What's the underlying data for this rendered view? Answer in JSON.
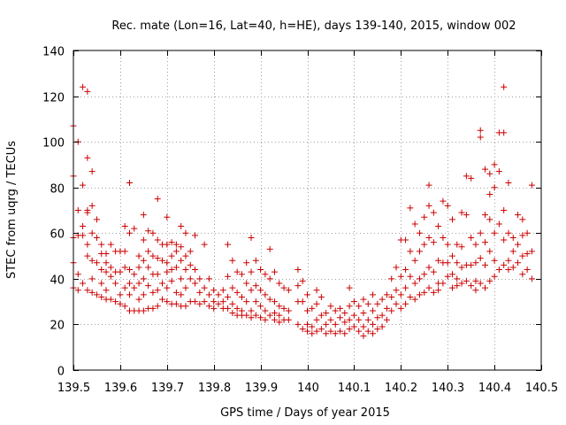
{
  "chart_data": {
    "type": "scatter",
    "title": "Rec. mate (Lon=16, Lat=40, h=HE), days 139-140, 2015, window 002",
    "xlabel": "GPS time / Days of year 2015",
    "ylabel": "STEC from uqrg / TECUs",
    "xlim": [
      139.5,
      140.5
    ],
    "ylim": [
      0,
      140
    ],
    "xticks": [
      139.5,
      139.6,
      139.7,
      139.8,
      139.9,
      140.0,
      140.1,
      140.2,
      140.3,
      140.4,
      140.5
    ],
    "xtick_labels": [
      "139.5",
      "139.6",
      "139.7",
      "139.8",
      "139.9",
      "140",
      "140.1",
      "140.2",
      "140.3",
      "140.4",
      "140.5"
    ],
    "yticks": [
      0,
      20,
      40,
      60,
      80,
      100,
      120,
      140
    ],
    "ytick_labels": [
      "0",
      "20",
      "40",
      "60",
      "80",
      "100",
      "120",
      "140"
    ],
    "grid": true,
    "marker": "plus",
    "color": "#cc0000",
    "points": [
      [
        139.5,
        107
      ],
      [
        139.5,
        85
      ],
      [
        139.5,
        58
      ],
      [
        139.5,
        47
      ],
      [
        139.5,
        36
      ],
      [
        139.51,
        100
      ],
      [
        139.51,
        70
      ],
      [
        139.51,
        59
      ],
      [
        139.51,
        42
      ],
      [
        139.51,
        35
      ],
      [
        139.52,
        124
      ],
      [
        139.52,
        81
      ],
      [
        139.52,
        63
      ],
      [
        139.52,
        59
      ],
      [
        139.52,
        38
      ],
      [
        139.53,
        122
      ],
      [
        139.53,
        93
      ],
      [
        139.53,
        70
      ],
      [
        139.53,
        69
      ],
      [
        139.53,
        55
      ],
      [
        139.53,
        50
      ],
      [
        139.53,
        35
      ],
      [
        139.54,
        87
      ],
      [
        139.54,
        72
      ],
      [
        139.54,
        60
      ],
      [
        139.54,
        48
      ],
      [
        139.54,
        40
      ],
      [
        139.54,
        34
      ],
      [
        139.55,
        66
      ],
      [
        139.55,
        58
      ],
      [
        139.55,
        47
      ],
      [
        139.55,
        33
      ],
      [
        139.56,
        55
      ],
      [
        139.56,
        51
      ],
      [
        139.56,
        44
      ],
      [
        139.56,
        38
      ],
      [
        139.56,
        32
      ],
      [
        139.57,
        51
      ],
      [
        139.57,
        47
      ],
      [
        139.57,
        43
      ],
      [
        139.57,
        35
      ],
      [
        139.57,
        31
      ],
      [
        139.58,
        55
      ],
      [
        139.58,
        45
      ],
      [
        139.58,
        41
      ],
      [
        139.58,
        31
      ],
      [
        139.59,
        52
      ],
      [
        139.59,
        43
      ],
      [
        139.59,
        38
      ],
      [
        139.59,
        30
      ],
      [
        139.6,
        52
      ],
      [
        139.6,
        43
      ],
      [
        139.6,
        33
      ],
      [
        139.6,
        29
      ],
      [
        139.61,
        63
      ],
      [
        139.61,
        52
      ],
      [
        139.61,
        45
      ],
      [
        139.61,
        36
      ],
      [
        139.61,
        28
      ],
      [
        139.62,
        82
      ],
      [
        139.62,
        60
      ],
      [
        139.62,
        44
      ],
      [
        139.62,
        38
      ],
      [
        139.62,
        33
      ],
      [
        139.62,
        26
      ],
      [
        139.63,
        62
      ],
      [
        139.63,
        42
      ],
      [
        139.63,
        36
      ],
      [
        139.63,
        26
      ],
      [
        139.64,
        50
      ],
      [
        139.64,
        45
      ],
      [
        139.64,
        38
      ],
      [
        139.64,
        31
      ],
      [
        139.64,
        26
      ],
      [
        139.65,
        68
      ],
      [
        139.65,
        57
      ],
      [
        139.65,
        48
      ],
      [
        139.65,
        40
      ],
      [
        139.65,
        33
      ],
      [
        139.65,
        26
      ],
      [
        139.66,
        61
      ],
      [
        139.66,
        52
      ],
      [
        139.66,
        45
      ],
      [
        139.66,
        37
      ],
      [
        139.66,
        27
      ],
      [
        139.67,
        60
      ],
      [
        139.67,
        50
      ],
      [
        139.67,
        42
      ],
      [
        139.67,
        34
      ],
      [
        139.67,
        27
      ],
      [
        139.68,
        75
      ],
      [
        139.68,
        57
      ],
      [
        139.68,
        49
      ],
      [
        139.68,
        42
      ],
      [
        139.68,
        35
      ],
      [
        139.68,
        28
      ],
      [
        139.69,
        55
      ],
      [
        139.69,
        48
      ],
      [
        139.69,
        38
      ],
      [
        139.69,
        31
      ],
      [
        139.7,
        67
      ],
      [
        139.7,
        55
      ],
      [
        139.7,
        47
      ],
      [
        139.7,
        43
      ],
      [
        139.7,
        36
      ],
      [
        139.7,
        30
      ],
      [
        139.71,
        56
      ],
      [
        139.71,
        50
      ],
      [
        139.71,
        44
      ],
      [
        139.71,
        39
      ],
      [
        139.71,
        29
      ],
      [
        139.72,
        55
      ],
      [
        139.72,
        52
      ],
      [
        139.72,
        45
      ],
      [
        139.72,
        34
      ],
      [
        139.72,
        29
      ],
      [
        139.73,
        63
      ],
      [
        139.73,
        54
      ],
      [
        139.73,
        48
      ],
      [
        139.73,
        40
      ],
      [
        139.73,
        33
      ],
      [
        139.73,
        28
      ],
      [
        139.74,
        60
      ],
      [
        139.74,
        50
      ],
      [
        139.74,
        44
      ],
      [
        139.74,
        36
      ],
      [
        139.74,
        28
      ],
      [
        139.75,
        52
      ],
      [
        139.75,
        46
      ],
      [
        139.75,
        40
      ],
      [
        139.75,
        30
      ],
      [
        139.76,
        59
      ],
      [
        139.76,
        44
      ],
      [
        139.76,
        38
      ],
      [
        139.76,
        30
      ],
      [
        139.77,
        40
      ],
      [
        139.77,
        34
      ],
      [
        139.77,
        29
      ],
      [
        139.78,
        55
      ],
      [
        139.78,
        36
      ],
      [
        139.78,
        30
      ],
      [
        139.79,
        40
      ],
      [
        139.79,
        33
      ],
      [
        139.79,
        28
      ],
      [
        139.8,
        35
      ],
      [
        139.8,
        30
      ],
      [
        139.8,
        27
      ],
      [
        139.81,
        33
      ],
      [
        139.81,
        29
      ],
      [
        139.82,
        35
      ],
      [
        139.82,
        30
      ],
      [
        139.82,
        27
      ],
      [
        139.83,
        55
      ],
      [
        139.83,
        41
      ],
      [
        139.83,
        32
      ],
      [
        139.83,
        27
      ],
      [
        139.84,
        48
      ],
      [
        139.84,
        36
      ],
      [
        139.84,
        29
      ],
      [
        139.84,
        25
      ],
      [
        139.85,
        43
      ],
      [
        139.85,
        34
      ],
      [
        139.85,
        27
      ],
      [
        139.85,
        24
      ],
      [
        139.86,
        42
      ],
      [
        139.86,
        32
      ],
      [
        139.86,
        26
      ],
      [
        139.86,
        24
      ],
      [
        139.87,
        47
      ],
      [
        139.87,
        38
      ],
      [
        139.87,
        30
      ],
      [
        139.87,
        24
      ],
      [
        139.88,
        58
      ],
      [
        139.88,
        43
      ],
      [
        139.88,
        35
      ],
      [
        139.88,
        26
      ],
      [
        139.88,
        23
      ],
      [
        139.89,
        48
      ],
      [
        139.89,
        37
      ],
      [
        139.89,
        30
      ],
      [
        139.89,
        24
      ],
      [
        139.9,
        44
      ],
      [
        139.9,
        35
      ],
      [
        139.9,
        28
      ],
      [
        139.9,
        23
      ],
      [
        139.91,
        42
      ],
      [
        139.91,
        33
      ],
      [
        139.91,
        26
      ],
      [
        139.91,
        22
      ],
      [
        139.92,
        53
      ],
      [
        139.92,
        40
      ],
      [
        139.92,
        31
      ],
      [
        139.92,
        24
      ],
      [
        139.93,
        43
      ],
      [
        139.93,
        30
      ],
      [
        139.93,
        25
      ],
      [
        139.93,
        22
      ],
      [
        139.94,
        38
      ],
      [
        139.94,
        28
      ],
      [
        139.94,
        24
      ],
      [
        139.94,
        21
      ],
      [
        139.95,
        36
      ],
      [
        139.95,
        27
      ],
      [
        139.95,
        22
      ],
      [
        139.96,
        35
      ],
      [
        139.96,
        26
      ],
      [
        139.96,
        22
      ],
      [
        139.98,
        44
      ],
      [
        139.98,
        37
      ],
      [
        139.98,
        30
      ],
      [
        139.98,
        20
      ],
      [
        139.99,
        39
      ],
      [
        139.99,
        30
      ],
      [
        139.99,
        18
      ],
      [
        140.0,
        33
      ],
      [
        140.0,
        26
      ],
      [
        140.0,
        20
      ],
      [
        140.0,
        17
      ],
      [
        140.01,
        27
      ],
      [
        140.01,
        19
      ],
      [
        140.01,
        16
      ],
      [
        140.02,
        35
      ],
      [
        140.02,
        29
      ],
      [
        140.02,
        22
      ],
      [
        140.02,
        17
      ],
      [
        140.03,
        32
      ],
      [
        140.03,
        24
      ],
      [
        140.03,
        18
      ],
      [
        140.04,
        25
      ],
      [
        140.04,
        20
      ],
      [
        140.04,
        16
      ],
      [
        140.05,
        28
      ],
      [
        140.05,
        22
      ],
      [
        140.05,
        17
      ],
      [
        140.06,
        26
      ],
      [
        140.06,
        20
      ],
      [
        140.06,
        16
      ],
      [
        140.07,
        27
      ],
      [
        140.07,
        23
      ],
      [
        140.07,
        17
      ],
      [
        140.08,
        25
      ],
      [
        140.08,
        21
      ],
      [
        140.08,
        16
      ],
      [
        140.09,
        36
      ],
      [
        140.09,
        28
      ],
      [
        140.09,
        22
      ],
      [
        140.09,
        18
      ],
      [
        140.1,
        30
      ],
      [
        140.1,
        24
      ],
      [
        140.1,
        19
      ],
      [
        140.11,
        28
      ],
      [
        140.11,
        22
      ],
      [
        140.11,
        17
      ],
      [
        140.12,
        31
      ],
      [
        140.12,
        25
      ],
      [
        140.12,
        19
      ],
      [
        140.12,
        15
      ],
      [
        140.13,
        29
      ],
      [
        140.13,
        22
      ],
      [
        140.13,
        17
      ],
      [
        140.14,
        33
      ],
      [
        140.14,
        26
      ],
      [
        140.14,
        20
      ],
      [
        140.14,
        16
      ],
      [
        140.15,
        29
      ],
      [
        140.15,
        23
      ],
      [
        140.15,
        18
      ],
      [
        140.16,
        31
      ],
      [
        140.16,
        24
      ],
      [
        140.16,
        19
      ],
      [
        140.17,
        33
      ],
      [
        140.17,
        27
      ],
      [
        140.17,
        22
      ],
      [
        140.18,
        40
      ],
      [
        140.18,
        32
      ],
      [
        140.18,
        26
      ],
      [
        140.19,
        45
      ],
      [
        140.19,
        35
      ],
      [
        140.19,
        29
      ],
      [
        140.2,
        57
      ],
      [
        140.2,
        41
      ],
      [
        140.2,
        33
      ],
      [
        140.2,
        27
      ],
      [
        140.21,
        57
      ],
      [
        140.21,
        44
      ],
      [
        140.21,
        36
      ],
      [
        140.21,
        29
      ],
      [
        140.22,
        71
      ],
      [
        140.22,
        52
      ],
      [
        140.22,
        41
      ],
      [
        140.22,
        32
      ],
      [
        140.23,
        64
      ],
      [
        140.23,
        48
      ],
      [
        140.23,
        38
      ],
      [
        140.23,
        31
      ],
      [
        140.24,
        60
      ],
      [
        140.24,
        52
      ],
      [
        140.24,
        40
      ],
      [
        140.24,
        33
      ],
      [
        140.25,
        67
      ],
      [
        140.25,
        55
      ],
      [
        140.25,
        42
      ],
      [
        140.25,
        34
      ],
      [
        140.26,
        72
      ],
      [
        140.26,
        81
      ],
      [
        140.26,
        58
      ],
      [
        140.26,
        45
      ],
      [
        140.26,
        36
      ],
      [
        140.27,
        69
      ],
      [
        140.27,
        56
      ],
      [
        140.27,
        43
      ],
      [
        140.27,
        34
      ],
      [
        140.28,
        63
      ],
      [
        140.28,
        48
      ],
      [
        140.28,
        38
      ],
      [
        140.28,
        35
      ],
      [
        140.29,
        74
      ],
      [
        140.29,
        58
      ],
      [
        140.29,
        47
      ],
      [
        140.29,
        38
      ],
      [
        140.3,
        72
      ],
      [
        140.3,
        55
      ],
      [
        140.3,
        47
      ],
      [
        140.3,
        41
      ],
      [
        140.31,
        66
      ],
      [
        140.31,
        50
      ],
      [
        140.31,
        42
      ],
      [
        140.31,
        36
      ],
      [
        140.32,
        55
      ],
      [
        140.32,
        47
      ],
      [
        140.32,
        40
      ],
      [
        140.32,
        37
      ],
      [
        140.33,
        69
      ],
      [
        140.33,
        54
      ],
      [
        140.33,
        45
      ],
      [
        140.33,
        38
      ],
      [
        140.34,
        85
      ],
      [
        140.34,
        68
      ],
      [
        140.34,
        46
      ],
      [
        140.34,
        39
      ],
      [
        140.35,
        84
      ],
      [
        140.35,
        58
      ],
      [
        140.35,
        46
      ],
      [
        140.35,
        37
      ],
      [
        140.36,
        55
      ],
      [
        140.36,
        47
      ],
      [
        140.36,
        39
      ],
      [
        140.36,
        35
      ],
      [
        140.37,
        105
      ],
      [
        140.37,
        102
      ],
      [
        140.37,
        60
      ],
      [
        140.37,
        49
      ],
      [
        140.37,
        38
      ],
      [
        140.38,
        88
      ],
      [
        140.38,
        68
      ],
      [
        140.38,
        56
      ],
      [
        140.38,
        46
      ],
      [
        140.38,
        36
      ],
      [
        140.39,
        86
      ],
      [
        140.39,
        77
      ],
      [
        140.39,
        66
      ],
      [
        140.39,
        52
      ],
      [
        140.39,
        39
      ],
      [
        140.4,
        90
      ],
      [
        140.4,
        80
      ],
      [
        140.4,
        60
      ],
      [
        140.4,
        48
      ],
      [
        140.4,
        41
      ],
      [
        140.41,
        104
      ],
      [
        140.41,
        87
      ],
      [
        140.41,
        64
      ],
      [
        140.41,
        44
      ],
      [
        140.42,
        124
      ],
      [
        140.42,
        104
      ],
      [
        140.42,
        70
      ],
      [
        140.42,
        57
      ],
      [
        140.42,
        46
      ],
      [
        140.43,
        82
      ],
      [
        140.43,
        60
      ],
      [
        140.43,
        48
      ],
      [
        140.43,
        44
      ],
      [
        140.44,
        58
      ],
      [
        140.44,
        52
      ],
      [
        140.44,
        45
      ],
      [
        140.45,
        68
      ],
      [
        140.45,
        55
      ],
      [
        140.45,
        47
      ],
      [
        140.46,
        66
      ],
      [
        140.46,
        59
      ],
      [
        140.46,
        50
      ],
      [
        140.46,
        42
      ],
      [
        140.47,
        60
      ],
      [
        140.47,
        51
      ],
      [
        140.47,
        44
      ],
      [
        140.48,
        81
      ],
      [
        140.48,
        52
      ],
      [
        140.48,
        40
      ]
    ]
  }
}
